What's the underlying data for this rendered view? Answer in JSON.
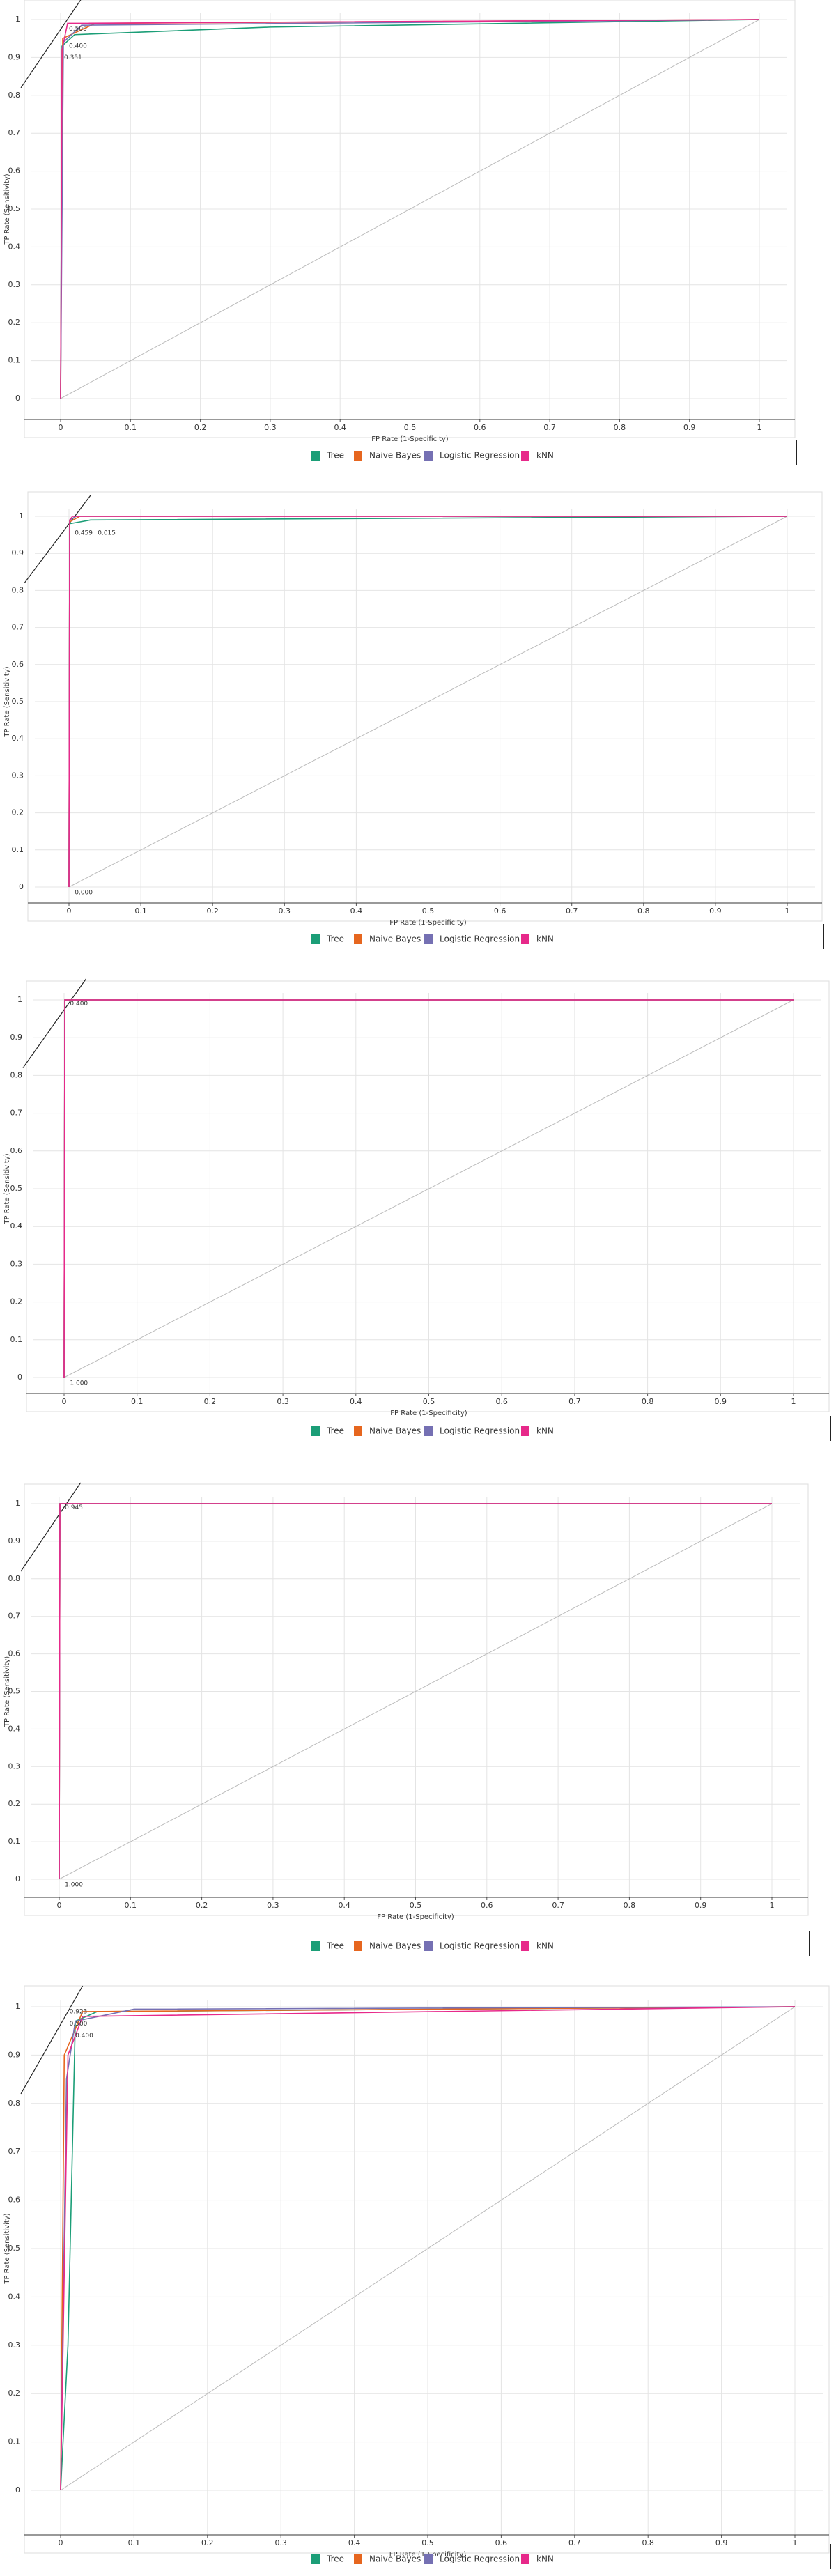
{
  "chart_data": [
    {
      "type": "line",
      "x_label": "FP Rate (1-Specificity)",
      "y_label": "TP Rate (Sensitivity)",
      "xlim": [
        0,
        1
      ],
      "ylim": [
        0,
        1
      ],
      "xticks": [
        0,
        0.1,
        0.2,
        0.3,
        0.4,
        0.5,
        0.6,
        0.7,
        0.8,
        0.9,
        1
      ],
      "yticks": [
        0,
        0.1,
        0.2,
        0.3,
        0.4,
        0.5,
        0.6,
        0.7,
        0.8,
        0.9,
        1
      ],
      "grid": true,
      "annotations": [
        "0.500",
        "0.400",
        "0.351"
      ],
      "series": [
        {
          "name": "Tree",
          "color": "#1b9e77",
          "x": [
            0,
            0.002,
            0.02,
            0.3,
            1
          ],
          "values": [
            0,
            0.93,
            0.96,
            0.98,
            1
          ]
        },
        {
          "name": "Naive Bayes",
          "color": "#e6661f",
          "x": [
            0,
            0.003,
            0.05,
            1
          ],
          "values": [
            0,
            0.95,
            0.99,
            1
          ]
        },
        {
          "name": "Logistic Regression",
          "color": "#7570b3",
          "x": [
            0,
            0.004,
            0.03,
            1
          ],
          "values": [
            0,
            0.94,
            0.985,
            1
          ]
        },
        {
          "name": "kNN",
          "color": "#e7298a",
          "x": [
            0,
            0.002,
            0.01,
            1
          ],
          "values": [
            0,
            0.92,
            0.99,
            1
          ]
        }
      ]
    },
    {
      "type": "line",
      "x_label": "FP Rate (1-Specificity)",
      "y_label": "TP Rate (Sensitivity)",
      "xlim": [
        0,
        1
      ],
      "ylim": [
        0,
        1
      ],
      "xticks": [
        0,
        0.1,
        0.2,
        0.3,
        0.4,
        0.5,
        0.6,
        0.7,
        0.8,
        0.9,
        1
      ],
      "yticks": [
        0,
        0.1,
        0.2,
        0.3,
        0.4,
        0.5,
        0.6,
        0.7,
        0.8,
        0.9,
        1
      ],
      "grid": true,
      "annotations": [
        "0.459",
        "0.015",
        "0.000"
      ],
      "series": [
        {
          "name": "Tree",
          "color": "#1b9e77",
          "x": [
            0,
            0.001,
            0.03,
            1
          ],
          "values": [
            0,
            0.98,
            0.99,
            1
          ]
        },
        {
          "name": "Naive Bayes",
          "color": "#e6661f",
          "x": [
            0,
            0.001,
            0.015,
            1
          ],
          "values": [
            0,
            0.985,
            1,
            1
          ]
        },
        {
          "name": "Logistic Regression",
          "color": "#7570b3",
          "x": [
            0,
            0.001,
            0.01,
            1
          ],
          "values": [
            0,
            0.99,
            1,
            1
          ]
        },
        {
          "name": "kNN",
          "color": "#e7298a",
          "x": [
            0,
            0.001,
            0.005,
            1
          ],
          "values": [
            0,
            0.99,
            1,
            1
          ]
        }
      ]
    },
    {
      "type": "line",
      "x_label": "FP Rate (1-Specificity)",
      "y_label": "TP Rate (Sensitivity)",
      "xlim": [
        0,
        1
      ],
      "ylim": [
        0,
        1
      ],
      "xticks": [
        0,
        0.1,
        0.2,
        0.3,
        0.4,
        0.5,
        0.6,
        0.7,
        0.8,
        0.9,
        1
      ],
      "yticks": [
        0,
        0.1,
        0.2,
        0.3,
        0.4,
        0.5,
        0.6,
        0.7,
        0.8,
        0.9,
        1
      ],
      "grid": true,
      "annotations": [
        "0.400",
        "1.000"
      ],
      "series": [
        {
          "name": "Tree",
          "color": "#1b9e77",
          "x": [
            0,
            0.001,
            1
          ],
          "values": [
            0,
            1,
            1
          ]
        },
        {
          "name": "Naive Bayes",
          "color": "#e6661f",
          "x": [
            0,
            0.001,
            1
          ],
          "values": [
            0,
            1,
            1
          ]
        },
        {
          "name": "Logistic Regression",
          "color": "#7570b3",
          "x": [
            0,
            0.001,
            1
          ],
          "values": [
            0,
            1,
            1
          ]
        },
        {
          "name": "kNN",
          "color": "#e7298a",
          "x": [
            0,
            0.001,
            1
          ],
          "values": [
            0,
            1,
            1
          ]
        }
      ]
    },
    {
      "type": "line",
      "x_label": "FP Rate (1-Specificity)",
      "y_label": "TP Rate (Sensitivity)",
      "xlim": [
        0,
        1
      ],
      "ylim": [
        0,
        1
      ],
      "xticks": [
        0,
        0.1,
        0.2,
        0.3,
        0.4,
        0.5,
        0.6,
        0.7,
        0.8,
        0.9,
        1
      ],
      "yticks": [
        0,
        0.1,
        0.2,
        0.3,
        0.4,
        0.5,
        0.6,
        0.7,
        0.8,
        0.9,
        1
      ],
      "grid": true,
      "annotations": [
        "0.945",
        "1.000"
      ],
      "series": [
        {
          "name": "Tree",
          "color": "#1b9e77",
          "x": [
            0,
            0.001,
            1
          ],
          "values": [
            0,
            1,
            1
          ]
        },
        {
          "name": "Naive Bayes",
          "color": "#e6661f",
          "x": [
            0,
            0.001,
            1
          ],
          "values": [
            0,
            1,
            1
          ]
        },
        {
          "name": "Logistic Regression",
          "color": "#7570b3",
          "x": [
            0,
            0.001,
            1
          ],
          "values": [
            0,
            1,
            1
          ]
        },
        {
          "name": "kNN",
          "color": "#e7298a",
          "x": [
            0,
            0.001,
            1
          ],
          "values": [
            0,
            1,
            1
          ]
        }
      ]
    },
    {
      "type": "line",
      "x_label": "FP Rate (1-Specificity)",
      "y_label": "TP Rate (Sensitivity)",
      "xlim": [
        0,
        1
      ],
      "ylim": [
        0,
        1
      ],
      "xticks": [
        0,
        0.1,
        0.2,
        0.3,
        0.4,
        0.5,
        0.6,
        0.7,
        0.8,
        0.9,
        1
      ],
      "yticks": [
        0,
        0.1,
        0.2,
        0.3,
        0.4,
        0.5,
        0.6,
        0.7,
        0.8,
        0.9,
        1
      ],
      "grid": true,
      "annotations": [
        "0.923",
        "0.500",
        "0.400"
      ],
      "series": [
        {
          "name": "Tree",
          "color": "#1b9e77",
          "x": [
            0,
            0.01,
            0.02,
            0.05,
            1
          ],
          "values": [
            0,
            0.3,
            0.97,
            0.99,
            1
          ]
        },
        {
          "name": "Naive Bayes",
          "color": "#e6661f",
          "x": [
            0,
            0.005,
            0.03,
            1
          ],
          "values": [
            0,
            0.9,
            0.99,
            1
          ]
        },
        {
          "name": "Logistic Regression",
          "color": "#7570b3",
          "x": [
            0,
            0.008,
            0.02,
            0.1,
            1
          ],
          "values": [
            0,
            0.85,
            0.97,
            0.995,
            1
          ]
        },
        {
          "name": "kNN",
          "color": "#e7298a",
          "x": [
            0,
            0.01,
            0.03,
            1
          ],
          "values": [
            0,
            0.9,
            0.98,
            1
          ]
        }
      ]
    }
  ]
}
